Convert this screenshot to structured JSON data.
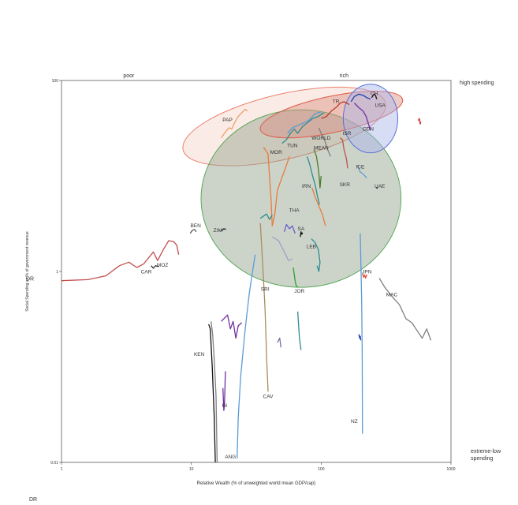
{
  "chart_data": {
    "type": "line",
    "xlabel": "Relative Wealth (% of unweighted world mean GDP/cap)",
    "ylabel": "Social Spending as % of government revenue",
    "x_scale": "log",
    "y_scale": "log",
    "xlim": [
      1,
      1000
    ],
    "ylim": [
      0.01,
      100
    ],
    "x_ticks": [
      "1",
      "10",
      "100",
      "1000"
    ],
    "y_ticks": [
      "0.01",
      "1",
      "100"
    ],
    "top_labels": {
      "left": "poor",
      "right": "rich"
    },
    "right_labels": {
      "top": "high spending",
      "bottom_line1": "extreme-low",
      "bottom_line2": "spending"
    },
    "y_side_label": "DR",
    "corner_label": "DR",
    "grid": false,
    "ellipses": [
      {
        "name": "poor-pink",
        "color": "#e8826c",
        "fill": "#f6d2c8",
        "center": [
          52,
          33
        ],
        "radius_log": [
          0.8,
          0.34
        ],
        "angle": 13
      },
      {
        "name": "green",
        "color": "#5aa85a",
        "fill": "#8fa08a",
        "center": [
          70,
          5.8
        ],
        "radius_log": [
          0.77,
          0.93
        ],
        "angle": 0
      },
      {
        "name": "salmon",
        "color": "#e05a47",
        "fill": "#d98f80",
        "center": [
          120,
          44
        ],
        "radius_log": [
          0.56,
          0.19
        ],
        "angle": 12
      },
      {
        "name": "blue",
        "color": "#5a6fd8",
        "fill": "#a9b3ec",
        "center": [
          240,
          40
        ],
        "radius_log": [
          0.21,
          0.36
        ],
        "angle": 0
      }
    ],
    "point_labels": [
      {
        "text": "PAP",
        "x": 19,
        "y": 37
      },
      {
        "text": "MOR",
        "x": 45,
        "y": 17
      },
      {
        "text": "TUN",
        "x": 60,
        "y": 20
      },
      {
        "text": "WORLD",
        "x": 100,
        "y": 24
      },
      {
        "text": "MEAN",
        "x": 100,
        "y": 19
      },
      {
        "text": "TR",
        "x": 130,
        "y": 58
      },
      {
        "text": "ISR",
        "x": 158,
        "y": 27
      },
      {
        "text": "CH",
        "x": 256,
        "y": 70
      },
      {
        "text": "USA",
        "x": 285,
        "y": 53
      },
      {
        "text": "CDN",
        "x": 230,
        "y": 30
      },
      {
        "text": "ICE",
        "x": 200,
        "y": 12
      },
      {
        "text": "UAE",
        "x": 283,
        "y": 7.5
      },
      {
        "text": "SKR",
        "x": 152,
        "y": 7.8
      },
      {
        "text": "IRN",
        "x": 77,
        "y": 7.5
      },
      {
        "text": "THA",
        "x": 62,
        "y": 4.2
      },
      {
        "text": "SA",
        "x": 70,
        "y": 2.7
      },
      {
        "text": "LEB",
        "x": 84,
        "y": 1.75
      },
      {
        "text": "BEN",
        "x": 10.8,
        "y": 2.9
      },
      {
        "text": "ZIM",
        "x": 16,
        "y": 2.6
      },
      {
        "text": "MOZ",
        "x": 6,
        "y": 1.12
      },
      {
        "text": "CAR",
        "x": 4.5,
        "y": 0.95
      },
      {
        "text": "JPN",
        "x": 225,
        "y": 0.95
      },
      {
        "text": "SRI",
        "x": 37,
        "y": 0.63
      },
      {
        "text": "JOR",
        "x": 68,
        "y": 0.6
      },
      {
        "text": "MAC",
        "x": 350,
        "y": 0.55
      },
      {
        "text": "KEN",
        "x": 11.5,
        "y": 0.13
      },
      {
        "text": "IN",
        "x": 18,
        "y": 0.038
      },
      {
        "text": "CAV",
        "x": 39,
        "y": 0.047
      },
      {
        "text": "NZ",
        "x": 180,
        "y": 0.026
      },
      {
        "text": "ANG",
        "x": 20,
        "y": 0.011
      }
    ],
    "series": [
      {
        "color": "#c0504d",
        "points": [
          [
            1,
            0.8
          ],
          [
            1.6,
            0.82
          ],
          [
            2.2,
            0.9
          ],
          [
            2.8,
            1.15
          ],
          [
            3.3,
            1.25
          ],
          [
            3.8,
            1.1
          ],
          [
            4.3,
            1.2
          ],
          [
            5.1,
            1.6
          ],
          [
            5.5,
            1.3
          ],
          [
            6.1,
            1.7
          ],
          [
            6.7,
            2.1
          ],
          [
            7.3,
            2.05
          ],
          [
            7.7,
            1.9
          ],
          [
            8,
            1.5
          ]
        ]
      },
      {
        "color": "#333333",
        "points": [
          [
            4.9,
            1.15
          ],
          [
            5.1,
            1.08
          ],
          [
            5.3,
            1.15
          ],
          [
            5.6,
            1.12
          ]
        ]
      },
      {
        "color": "#555555",
        "points": [
          [
            9.8,
            2.5
          ],
          [
            10.2,
            2.7
          ],
          [
            10.6,
            2.75
          ],
          [
            10.9,
            2.6
          ]
        ]
      },
      {
        "color": "#222222",
        "points": [
          [
            17,
            2.65
          ],
          [
            17.8,
            2.8
          ],
          [
            18.5,
            2.75
          ]
        ]
      },
      {
        "color": "#e8a06a",
        "points": [
          [
            17,
            25
          ],
          [
            18,
            28
          ],
          [
            19.5,
            32
          ],
          [
            20.5,
            31
          ],
          [
            21.5,
            36
          ],
          [
            23,
            42
          ],
          [
            24.5,
            46
          ],
          [
            26,
            50
          ],
          [
            27,
            48
          ]
        ]
      },
      {
        "color": "#e87b3a",
        "points": [
          [
            36,
            20
          ],
          [
            39,
            17
          ],
          [
            40,
            10
          ],
          [
            41,
            6
          ],
          [
            42,
            3
          ],
          [
            44,
            4
          ],
          [
            46,
            7
          ],
          [
            49,
            9
          ],
          [
            53,
            12
          ],
          [
            57,
            16
          ]
        ]
      },
      {
        "color": "#2e8b8b",
        "points": [
          [
            50,
            22
          ],
          [
            54,
            24
          ],
          [
            58,
            28
          ],
          [
            62,
            31
          ],
          [
            66,
            28
          ],
          [
            72,
            33
          ],
          [
            78,
            36
          ],
          [
            86,
            40
          ],
          [
            95,
            42
          ],
          [
            105,
            46
          ]
        ]
      },
      {
        "color": "#5b9bd5",
        "points": [
          [
            55,
            28
          ],
          [
            60,
            32
          ],
          [
            70,
            35
          ],
          [
            80,
            38
          ],
          [
            90,
            45
          ],
          [
            100,
            47
          ]
        ]
      },
      {
        "color": "#4a7c2a",
        "points": [
          [
            88,
            19
          ],
          [
            92,
            16
          ],
          [
            95,
            12
          ],
          [
            97,
            9
          ],
          [
            98,
            7.5
          ],
          [
            100,
            10
          ]
        ]
      },
      {
        "color": "#808080",
        "points": [
          [
            96,
            32
          ],
          [
            100,
            28
          ],
          [
            106,
            24
          ],
          [
            112,
            19
          ],
          [
            118,
            16
          ]
        ]
      },
      {
        "color": "#2e8b8b",
        "points": [
          [
            78,
            16
          ],
          [
            82,
            13
          ],
          [
            86,
            10
          ],
          [
            90,
            8
          ],
          [
            94,
            6
          ],
          [
            97,
            5
          ]
        ]
      },
      {
        "color": "#e87b3a",
        "points": [
          [
            85,
            7.5
          ],
          [
            90,
            6
          ],
          [
            95,
            5
          ],
          [
            102,
            4
          ],
          [
            108,
            3
          ]
        ]
      },
      {
        "color": "#6a5acd",
        "points": [
          [
            52,
            2.6
          ],
          [
            54,
            3.1
          ],
          [
            57,
            2.8
          ],
          [
            60,
            3
          ],
          [
            63,
            2.5
          ]
        ]
      },
      {
        "color": "#2e8b8b",
        "points": [
          [
            84,
            2.2
          ],
          [
            90,
            2.0
          ],
          [
            95,
            1.7
          ],
          [
            98,
            1.25
          ],
          [
            96,
            1.0
          ],
          [
            93,
            1.15
          ]
        ]
      },
      {
        "color": "#111111",
        "points": [
          [
            69,
            2.3
          ],
          [
            70,
            2.6
          ],
          [
            71,
            2.45
          ],
          [
            72,
            2.55
          ]
        ]
      },
      {
        "color": "#c0504d",
        "points": [
          [
            140,
            25
          ],
          [
            146,
            24
          ],
          [
            150,
            19
          ],
          [
            155,
            16
          ],
          [
            158,
            14
          ],
          [
            160,
            12
          ]
        ]
      },
      {
        "color": "#c0392b",
        "points": [
          [
            100,
            40
          ],
          [
            110,
            42
          ],
          [
            120,
            48
          ],
          [
            132,
            53
          ],
          [
            140,
            58
          ],
          [
            150,
            60
          ],
          [
            165,
            56
          ]
        ]
      },
      {
        "color": "#1e3fa8",
        "points": [
          [
            170,
            60
          ],
          [
            180,
            68
          ],
          [
            195,
            72
          ],
          [
            210,
            70
          ],
          [
            225,
            66
          ],
          [
            240,
            64
          ]
        ]
      },
      {
        "color": "#7030a0",
        "points": [
          [
            180,
            58
          ],
          [
            195,
            52
          ],
          [
            210,
            48
          ],
          [
            222,
            42
          ],
          [
            230,
            36
          ],
          [
            240,
            30
          ]
        ]
      },
      {
        "color": "#111111",
        "points": [
          [
            245,
            66
          ],
          [
            255,
            72
          ],
          [
            262,
            70
          ],
          [
            268,
            64
          ]
        ]
      },
      {
        "color": "#d62728",
        "points": [
          [
            560,
            38
          ],
          [
            570,
            40
          ],
          [
            580,
            35
          ],
          [
            585,
            37
          ]
        ]
      },
      {
        "color": "#5b9bd5",
        "points": [
          [
            190,
            13
          ],
          [
            200,
            11
          ],
          [
            210,
            10.5
          ],
          [
            225,
            9.5
          ]
        ]
      },
      {
        "color": "#111111",
        "points": [
          [
            265,
            7.6
          ],
          [
            272,
            7.4
          ]
        ]
      },
      {
        "color": "#5b9bd5",
        "points": [
          [
            200,
            2.5
          ],
          [
            202,
            1.4
          ],
          [
            205,
            0.5
          ],
          [
            207,
            0.14
          ],
          [
            208,
            0.02
          ]
        ]
      },
      {
        "color": "#1e3fa8",
        "points": [
          [
            195,
            0.22
          ],
          [
            198,
            0.2
          ],
          [
            200,
            0.21
          ],
          [
            202,
            0.19
          ]
        ]
      },
      {
        "color": "#e74c3c",
        "points": [
          [
            208,
            0.95
          ],
          [
            212,
            0.87
          ],
          [
            216,
            0.92
          ],
          [
            220,
            0.85
          ],
          [
            225,
            0.93
          ]
        ]
      },
      {
        "color": "#7f7f7f",
        "points": [
          [
            280,
            0.85
          ],
          [
            310,
            0.68
          ],
          [
            350,
            0.55
          ],
          [
            400,
            0.45
          ],
          [
            450,
            0.32
          ],
          [
            500,
            0.29
          ],
          [
            560,
            0.23
          ],
          [
            600,
            0.2
          ],
          [
            650,
            0.25
          ],
          [
            700,
            0.19
          ]
        ]
      },
      {
        "color": "#a0a0c8",
        "points": [
          [
            42,
            2.3
          ],
          [
            47,
            2.1
          ],
          [
            52,
            1.6
          ],
          [
            56,
            1.3
          ],
          [
            60,
            1.35
          ]
        ]
      },
      {
        "color": "#aa8c5a",
        "points": [
          [
            34,
            3.2
          ],
          [
            35,
            1.6
          ],
          [
            36,
            0.8
          ],
          [
            37,
            0.4
          ],
          [
            38,
            0.13
          ],
          [
            39,
            0.055
          ]
        ]
      },
      {
        "color": "#5b9bd5",
        "points": [
          [
            31,
            1.5
          ],
          [
            28,
            0.6
          ],
          [
            26,
            0.25
          ],
          [
            24,
            0.08
          ],
          [
            23,
            0.03
          ],
          [
            22.5,
            0.011
          ]
        ]
      },
      {
        "color": "#2ca02c",
        "points": [
          [
            61,
            1.1
          ],
          [
            63,
            0.8
          ],
          [
            64,
            0.72
          ],
          [
            66,
            0.68
          ]
        ]
      },
      {
        "color": "#2e8b8b",
        "points": [
          [
            66,
            0.38
          ],
          [
            68,
            0.2
          ],
          [
            70,
            0.15
          ]
        ]
      },
      {
        "color": "#7b68a0",
        "points": [
          [
            46,
            0.18
          ],
          [
            48,
            0.2
          ],
          [
            49,
            0.16
          ]
        ]
      },
      {
        "color": "#111111",
        "points": [
          [
            13.6,
            0.28
          ],
          [
            14,
            0.25
          ],
          [
            14.5,
            0.1
          ],
          [
            15,
            0.03
          ],
          [
            15.3,
            0.01
          ]
        ]
      },
      {
        "color": "#7f7f7f",
        "points": [
          [
            14.2,
            0.3
          ],
          [
            14.6,
            0.22
          ],
          [
            15,
            0.12
          ],
          [
            15.5,
            0.05
          ],
          [
            15.8,
            0.01
          ]
        ]
      },
      {
        "color": "#7030a0",
        "points": [
          [
            17,
            0.3
          ],
          [
            19,
            0.35
          ],
          [
            20,
            0.25
          ],
          [
            21,
            0.3
          ],
          [
            22,
            0.2
          ],
          [
            23,
            0.27
          ],
          [
            24.5,
            0.29
          ]
        ]
      },
      {
        "color": "#7030a0",
        "points": [
          [
            17.5,
            0.06
          ],
          [
            17.8,
            0.035
          ],
          [
            18,
            0.04
          ],
          [
            18.3,
            0.09
          ]
        ]
      },
      {
        "color": "#2e8b8b",
        "points": [
          [
            34,
            3.6
          ],
          [
            38,
            4.0
          ],
          [
            40,
            3.5
          ],
          [
            42,
            3.9
          ]
        ]
      }
    ]
  }
}
